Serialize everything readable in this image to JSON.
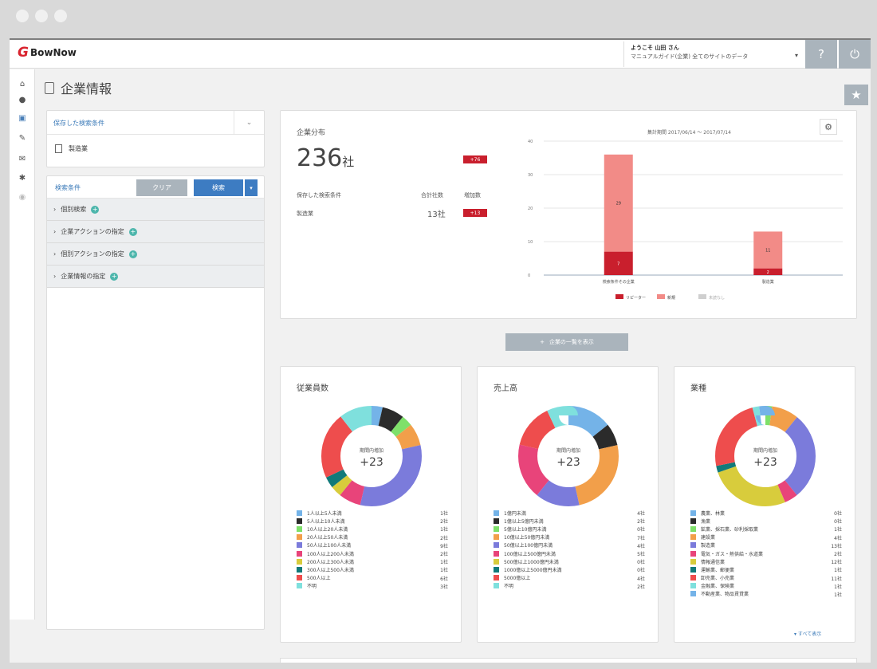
{
  "window": {
    "dots": [
      "",
      "",
      ""
    ]
  },
  "header": {
    "logo_text": "BowNow",
    "user_line1": "ようこそ 山田 さん",
    "user_line2": "マニュアルガイド(企業) 全てのサイトのデータ",
    "help_icon": "help-icon",
    "power_icon": "power-icon"
  },
  "leftnav": [
    "home-icon",
    "user-icon",
    "company-icon",
    "edit-icon",
    "mail-icon",
    "settings-icon",
    "eye-icon"
  ],
  "page": {
    "title": "企業情報"
  },
  "saved_search": {
    "header": "保存した検索条件",
    "item": "製造業"
  },
  "conditions": {
    "label": "検索条件",
    "clear": "クリア",
    "search": "検索",
    "items": [
      "個別検索",
      "企業アクションの指定",
      "個別アクションの指定",
      "企業情報の指定"
    ]
  },
  "distribution": {
    "title": "企業分布",
    "count": "236",
    "unit": "社",
    "badge": "+76",
    "col_headers": [
      "保存した検索条件",
      "合計社数",
      "増加数"
    ],
    "row_name": "製造業",
    "row_count": "13社",
    "row_badge": "+13",
    "period": "集計期間 2017/06/14 〜 2017/07/14"
  },
  "chart_data": {
    "type": "bar",
    "stacked": true,
    "categories": [
      "検索条件その企業",
      "製造業"
    ],
    "series": [
      {
        "values": [
          7,
          2
        ]
      },
      {
        "values": [
          29,
          11
        ]
      }
    ],
    "data_labels": [
      "7",
      "29",
      "2",
      "11"
    ],
    "ylim": [
      0,
      40
    ],
    "yticks": [
      "40",
      "30",
      "20",
      "10",
      "0"
    ],
    "legend_labels": [
      "リピーター",
      "新規",
      "未読なし"
    ],
    "colors": [
      "#c91f2d",
      "#f28b87",
      "#cfcfcf"
    ]
  },
  "more_button": "企業の一覧を表示",
  "donuts": [
    {
      "title": "従業員数",
      "center_label": "期間内増加",
      "center_value": "+23",
      "legend": [
        {
          "label": "1人以上5人未満",
          "value": "1社",
          "color": "#74b3e8"
        },
        {
          "label": "5人以上10人未満",
          "value": "2社",
          "color": "#2b2b2b"
        },
        {
          "label": "10人以上20人未満",
          "value": "1社",
          "color": "#7ee06a"
        },
        {
          "label": "20人以上50人未満",
          "value": "2社",
          "color": "#f29f4a"
        },
        {
          "label": "50人以上100人未満",
          "value": "9社",
          "color": "#7b7bdb"
        },
        {
          "label": "100人以上200人未満",
          "value": "2社",
          "color": "#e8447a"
        },
        {
          "label": "200人以上300人未満",
          "value": "1社",
          "color": "#d8cc3c"
        },
        {
          "label": "300人以上500人未満",
          "value": "1社",
          "color": "#117a7a"
        },
        {
          "label": "500人以上",
          "value": "6社",
          "color": "#ee4d4d"
        },
        {
          "label": "不明",
          "value": "3社",
          "color": "#7fe0dd"
        }
      ]
    },
    {
      "title": "売上高",
      "center_label": "期間内増加",
      "center_value": "+23",
      "legend": [
        {
          "label": "1億円未満",
          "value": "4社",
          "color": "#74b3e8"
        },
        {
          "label": "1億以上5億円未満",
          "value": "2社",
          "color": "#2b2b2b"
        },
        {
          "label": "5億以上10億円未満",
          "value": "0社",
          "color": "#7ee06a"
        },
        {
          "label": "10億以上50億円未満",
          "value": "7社",
          "color": "#f29f4a"
        },
        {
          "label": "50億以上100億円未満",
          "value": "4社",
          "color": "#7b7bdb"
        },
        {
          "label": "100億以上500億円未満",
          "value": "5社",
          "color": "#e8447a"
        },
        {
          "label": "500億以上1000億円未満",
          "value": "0社",
          "color": "#d8cc3c"
        },
        {
          "label": "1000億以上5000億円未満",
          "value": "0社",
          "color": "#117a7a"
        },
        {
          "label": "5000億以上",
          "value": "4社",
          "color": "#ee4d4d"
        },
        {
          "label": "不明",
          "value": "2社",
          "color": "#7fe0dd"
        }
      ]
    },
    {
      "title": "業種",
      "center_label": "期間内増加",
      "center_value": "+23",
      "show_all": "すべて表示",
      "legend": [
        {
          "label": "農業、林業",
          "value": "0社",
          "color": "#74b3e8"
        },
        {
          "label": "漁業",
          "value": "0社",
          "color": "#2b2b2b"
        },
        {
          "label": "鉱業、採石業、砂利採取業",
          "value": "1社",
          "color": "#7ee06a"
        },
        {
          "label": "建設業",
          "value": "4社",
          "color": "#f29f4a"
        },
        {
          "label": "製造業",
          "value": "13社",
          "color": "#7b7bdb"
        },
        {
          "label": "電気・ガス・熱供給・水道業",
          "value": "2社",
          "color": "#e8447a"
        },
        {
          "label": "情報通信業",
          "value": "12社",
          "color": "#d8cc3c"
        },
        {
          "label": "運輸業、郵便業",
          "value": "1社",
          "color": "#117a7a"
        },
        {
          "label": "卸売業、小売業",
          "value": "11社",
          "color": "#ee4d4d"
        },
        {
          "label": "金融業、保険業",
          "value": "1社",
          "color": "#7fe0dd"
        },
        {
          "label": "不動産業、物品賃貸業",
          "value": "1社",
          "color": "#74b3e8"
        }
      ]
    }
  ]
}
